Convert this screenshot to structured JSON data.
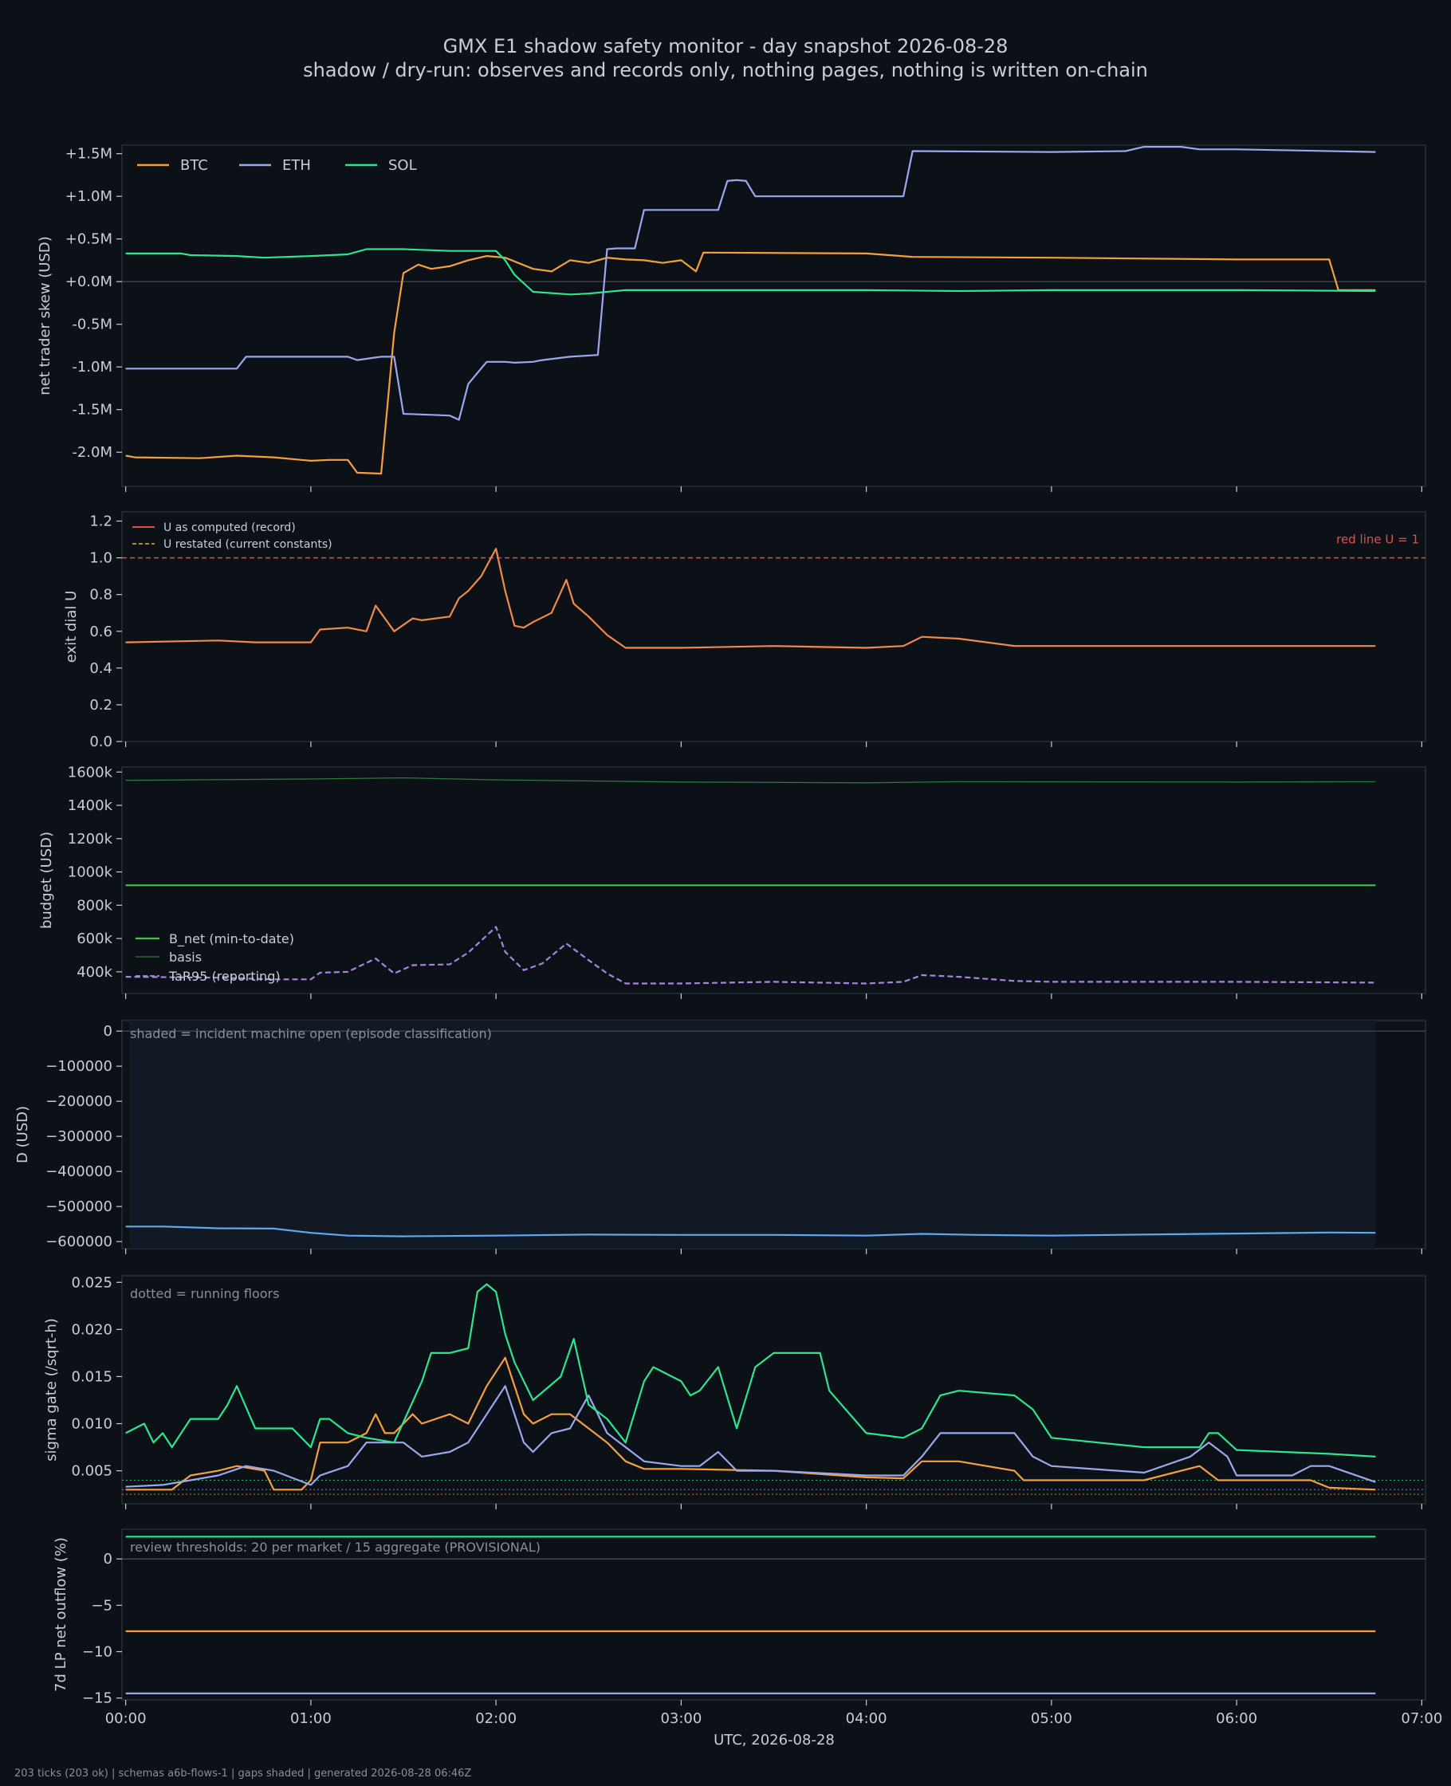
{
  "title": "GMX E1 shadow safety monitor - day snapshot 2026-08-28",
  "subtitle": "shadow / dry-run: observes and records only, nothing pages, nothing is written on-chain",
  "xlabel": "UTC, 2026-08-28",
  "footer": "203 ticks (203 ok) | schemas a6b-flows-1 | gaps shaded | generated 2026-08-28 06:46Z",
  "x_ticks": [
    "00:00",
    "01:00",
    "02:00",
    "03:00",
    "04:00",
    "05:00",
    "06:00",
    "07:00"
  ],
  "colors": {
    "background": "#0c1017",
    "btc": "#f5a03c",
    "eth": "#9aa8ee",
    "sol": "#2ee58f",
    "u": "#ef8a4a",
    "redline": "#e0504a",
    "bnet": "#3fc944",
    "basis": "#2a7a3a",
    "tar": "#a685e0",
    "d": "#5ea8f0"
  },
  "chart_data": [
    {
      "type": "line",
      "ylabel": "net trader skew (USD)",
      "x_unit": "hours",
      "xlim": [
        -0.02,
        7.02
      ],
      "ylim": [
        -2.4,
        1.6
      ],
      "yticks": [
        -2.0,
        -1.5,
        -1.0,
        -0.5,
        0.0,
        0.5,
        1.0,
        1.5
      ],
      "ytick_labels": [
        "-2.0M",
        "-1.5M",
        "-1.0M",
        "-0.5M",
        "+0.0M",
        "+0.5M",
        "+1.0M",
        "+1.5M"
      ],
      "legend": [
        "BTC",
        "ETH",
        "SOL"
      ],
      "legend_position": "top-left",
      "zero_line": true,
      "series": [
        {
          "name": "BTC",
          "color": "#f5a03c",
          "x": [
            0,
            0.05,
            0.4,
            0.6,
            0.8,
            1.0,
            1.1,
            1.2,
            1.25,
            1.38,
            1.45,
            1.5,
            1.58,
            1.65,
            1.75,
            1.85,
            1.95,
            2.05,
            2.2,
            2.3,
            2.4,
            2.5,
            2.6,
            2.7,
            2.8,
            2.9,
            3.0,
            3.08,
            3.12,
            4.0,
            4.25,
            5.0,
            6.0,
            6.5,
            6.55,
            6.75
          ],
          "y": [
            -2.04,
            -2.06,
            -2.07,
            -2.04,
            -2.06,
            -2.1,
            -2.09,
            -2.09,
            -2.24,
            -2.25,
            -0.6,
            0.1,
            0.2,
            0.15,
            0.18,
            0.25,
            0.3,
            0.28,
            0.15,
            0.12,
            0.25,
            0.22,
            0.28,
            0.26,
            0.25,
            0.22,
            0.25,
            0.12,
            0.34,
            0.33,
            0.29,
            0.28,
            0.26,
            0.26,
            -0.1,
            -0.1
          ]
        },
        {
          "name": "ETH",
          "color": "#9aa8ee",
          "x": [
            0,
            0.6,
            0.65,
            1.0,
            1.2,
            1.25,
            1.38,
            1.45,
            1.5,
            1.75,
            1.8,
            1.85,
            1.95,
            2.05,
            2.1,
            2.2,
            2.25,
            2.4,
            2.55,
            2.6,
            2.65,
            2.75,
            2.8,
            3.2,
            3.25,
            3.3,
            3.35,
            3.4,
            4.2,
            4.25,
            5.0,
            5.4,
            5.5,
            5.7,
            5.8,
            6.0,
            6.75
          ],
          "y": [
            -1.02,
            -1.02,
            -0.88,
            -0.88,
            -0.88,
            -0.92,
            -0.88,
            -0.88,
            -1.55,
            -1.57,
            -1.62,
            -1.2,
            -0.94,
            -0.94,
            -0.95,
            -0.94,
            -0.92,
            -0.88,
            -0.86,
            0.38,
            0.39,
            0.39,
            0.84,
            0.84,
            1.18,
            1.19,
            1.18,
            1.0,
            1.0,
            1.53,
            1.52,
            1.53,
            1.58,
            1.58,
            1.55,
            1.55,
            1.52
          ]
        },
        {
          "name": "SOL",
          "color": "#2ee58f",
          "x": [
            0,
            0.3,
            0.35,
            0.6,
            0.75,
            1.0,
            1.2,
            1.3,
            1.5,
            1.75,
            2.0,
            2.05,
            2.1,
            2.2,
            2.4,
            2.5,
            2.6,
            2.7,
            3.0,
            3.5,
            4.0,
            4.5,
            5.0,
            6.0,
            6.75
          ],
          "y": [
            0.33,
            0.33,
            0.31,
            0.3,
            0.28,
            0.3,
            0.32,
            0.38,
            0.38,
            0.36,
            0.36,
            0.25,
            0.08,
            -0.12,
            -0.15,
            -0.14,
            -0.12,
            -0.1,
            -0.1,
            -0.1,
            -0.1,
            -0.11,
            -0.1,
            -0.1,
            -0.11
          ]
        }
      ]
    },
    {
      "type": "line",
      "ylabel": "exit dial U",
      "x_unit": "hours",
      "xlim": [
        -0.02,
        7.02
      ],
      "ylim": [
        0,
        1.25
      ],
      "yticks": [
        0.0,
        0.2,
        0.4,
        0.6,
        0.8,
        1.0,
        1.2
      ],
      "ytick_labels": [
        "0.0",
        "0.2",
        "0.4",
        "0.6",
        "0.8",
        "1.0",
        "1.2"
      ],
      "legend": [
        "U as computed (record)",
        "U restated (current constants)"
      ],
      "legend_position": "top-left",
      "hline": {
        "y": 1.0,
        "label": "red line U = 1",
        "color": "#e0504a"
      },
      "series": [
        {
          "name": "U as computed (record)",
          "color": "#ef8a4a",
          "x": [
            0,
            0.5,
            0.7,
            1.0,
            1.05,
            1.2,
            1.3,
            1.35,
            1.45,
            1.55,
            1.6,
            1.75,
            1.8,
            1.85,
            1.92,
            2.0,
            2.05,
            2.1,
            2.15,
            2.2,
            2.3,
            2.38,
            2.42,
            2.5,
            2.6,
            2.7,
            2.8,
            3.0,
            3.5,
            4.0,
            4.2,
            4.3,
            4.5,
            4.8,
            5.0,
            6.0,
            6.75
          ],
          "y": [
            0.54,
            0.55,
            0.54,
            0.54,
            0.61,
            0.62,
            0.6,
            0.74,
            0.6,
            0.67,
            0.66,
            0.68,
            0.78,
            0.82,
            0.9,
            1.05,
            0.82,
            0.63,
            0.62,
            0.65,
            0.7,
            0.88,
            0.75,
            0.68,
            0.58,
            0.51,
            0.51,
            0.51,
            0.52,
            0.51,
            0.52,
            0.57,
            0.56,
            0.52,
            0.52,
            0.52,
            0.52
          ]
        }
      ]
    },
    {
      "type": "line",
      "ylabel": "budget (USD)",
      "x_unit": "hours",
      "xlim": [
        -0.02,
        7.02
      ],
      "ylim": [
        270000,
        1630000
      ],
      "yticks": [
        400000,
        600000,
        800000,
        1000000,
        1200000,
        1400000,
        1600000
      ],
      "ytick_labels": [
        "400k",
        "600k",
        "800k",
        "1000k",
        "1200k",
        "1400k",
        "1600k"
      ],
      "legend": [
        "B_net (min-to-date)",
        "basis",
        "TaR95 (reporting)"
      ],
      "legend_position": "bottom-left",
      "series": [
        {
          "name": "B_net (min-to-date)",
          "color": "#3fc944",
          "x": [
            0,
            6.75
          ],
          "y": [
            920000,
            920000
          ]
        },
        {
          "name": "basis",
          "color": "#2a7a3a",
          "x": [
            0,
            1.0,
            1.5,
            2.0,
            3.0,
            4.0,
            4.5,
            6.0,
            6.75
          ],
          "y": [
            1550000,
            1558000,
            1565000,
            1553000,
            1540000,
            1535000,
            1542000,
            1540000,
            1542000
          ]
        },
        {
          "name": "TaR95 (reporting)",
          "color": "#a685e0",
          "dash": true,
          "x": [
            0,
            0.5,
            0.8,
            1.0,
            1.05,
            1.2,
            1.35,
            1.45,
            1.55,
            1.75,
            1.85,
            2.0,
            2.05,
            2.15,
            2.25,
            2.38,
            2.5,
            2.6,
            2.7,
            3.0,
            3.5,
            4.0,
            4.2,
            4.3,
            4.5,
            4.8,
            5.0,
            6.0,
            6.75
          ],
          "y": [
            370000,
            365000,
            355000,
            355000,
            395000,
            400000,
            480000,
            390000,
            440000,
            445000,
            515000,
            670000,
            520000,
            410000,
            450000,
            570000,
            470000,
            390000,
            330000,
            330000,
            340000,
            330000,
            340000,
            380000,
            370000,
            345000,
            340000,
            340000,
            335000
          ]
        }
      ]
    },
    {
      "type": "line",
      "ylabel": "D (USD)",
      "x_unit": "hours",
      "xlim": [
        -0.02,
        7.02
      ],
      "ylim": [
        -620000,
        30000
      ],
      "yticks": [
        0,
        -100000,
        -200000,
        -300000,
        -400000,
        -500000,
        -600000
      ],
      "ytick_labels": [
        "0",
        "−100000",
        "−200000",
        "−300000",
        "−400000",
        "−500000",
        "−600000"
      ],
      "note": "shaded = incident machine open (episode classification)",
      "shade": [
        0.02,
        6.75
      ],
      "zero_line": true,
      "series": [
        {
          "name": "D",
          "color": "#5ea8f0",
          "x": [
            0,
            0.2,
            0.5,
            0.8,
            1.0,
            1.2,
            1.5,
            2.0,
            2.5,
            3.0,
            3.5,
            4.0,
            4.3,
            4.6,
            5.0,
            5.5,
            6.0,
            6.5,
            6.75
          ],
          "y": [
            -557000,
            -557000,
            -562000,
            -563000,
            -575000,
            -583000,
            -585000,
            -583000,
            -580000,
            -581000,
            -581000,
            -583000,
            -578000,
            -581000,
            -583000,
            -580000,
            -577000,
            -574000,
            -575000
          ]
        }
      ]
    },
    {
      "type": "line",
      "ylabel": "sigma gate (/sqrt-h)",
      "x_unit": "hours",
      "xlim": [
        -0.02,
        7.02
      ],
      "ylim": [
        0.0015,
        0.0257
      ],
      "yticks": [
        0.005,
        0.01,
        0.015,
        0.02,
        0.025
      ],
      "ytick_labels": [
        "0.005",
        "0.010",
        "0.015",
        "0.020",
        "0.025"
      ],
      "note": "dotted = running floors",
      "floors": [
        {
          "y": 0.004,
          "color": "#2ee58f"
        },
        {
          "y": 0.003,
          "color": "#9aa8ee"
        },
        {
          "y": 0.0025,
          "color": "#f5a03c"
        }
      ],
      "series": [
        {
          "name": "BTC",
          "color": "#f5a03c",
          "x": [
            0,
            0.25,
            0.35,
            0.5,
            0.6,
            0.75,
            0.8,
            0.95,
            1.0,
            1.05,
            1.2,
            1.3,
            1.35,
            1.4,
            1.45,
            1.55,
            1.6,
            1.75,
            1.85,
            1.95,
            2.05,
            2.15,
            2.2,
            2.3,
            2.4,
            2.5,
            2.6,
            2.7,
            2.8,
            3.0,
            3.5,
            4.0,
            4.2,
            4.3,
            4.5,
            4.8,
            4.85,
            5.0,
            5.5,
            5.8,
            5.9,
            6.0,
            6.4,
            6.5,
            6.75
          ],
          "y": [
            0.003,
            0.003,
            0.0045,
            0.005,
            0.0055,
            0.005,
            0.003,
            0.003,
            0.004,
            0.008,
            0.008,
            0.009,
            0.011,
            0.009,
            0.009,
            0.011,
            0.01,
            0.011,
            0.01,
            0.014,
            0.017,
            0.011,
            0.01,
            0.011,
            0.011,
            0.0095,
            0.008,
            0.006,
            0.0052,
            0.0052,
            0.005,
            0.0043,
            0.0042,
            0.006,
            0.006,
            0.005,
            0.004,
            0.004,
            0.004,
            0.0055,
            0.004,
            0.004,
            0.004,
            0.0032,
            0.003
          ]
        },
        {
          "name": "ETH",
          "color": "#9aa8ee",
          "x": [
            0,
            0.2,
            0.35,
            0.5,
            0.65,
            0.8,
            1.0,
            1.05,
            1.2,
            1.3,
            1.5,
            1.6,
            1.75,
            1.85,
            1.95,
            2.05,
            2.15,
            2.2,
            2.3,
            2.4,
            2.5,
            2.6,
            2.8,
            3.0,
            3.1,
            3.2,
            3.3,
            3.5,
            4.0,
            4.2,
            4.3,
            4.4,
            4.5,
            4.8,
            4.9,
            5.0,
            5.5,
            5.75,
            5.85,
            5.95,
            6.0,
            6.3,
            6.4,
            6.5,
            6.75
          ],
          "y": [
            0.0033,
            0.0035,
            0.004,
            0.0045,
            0.0055,
            0.005,
            0.0035,
            0.0045,
            0.0055,
            0.008,
            0.008,
            0.0065,
            0.007,
            0.008,
            0.011,
            0.014,
            0.008,
            0.007,
            0.009,
            0.0095,
            0.013,
            0.009,
            0.006,
            0.0055,
            0.0055,
            0.007,
            0.005,
            0.005,
            0.0045,
            0.0045,
            0.0065,
            0.009,
            0.009,
            0.009,
            0.0065,
            0.0055,
            0.0048,
            0.0065,
            0.008,
            0.0065,
            0.0045,
            0.0045,
            0.0055,
            0.0055,
            0.0038
          ]
        },
        {
          "name": "SOL",
          "color": "#2ee58f",
          "x": [
            0,
            0.1,
            0.15,
            0.2,
            0.25,
            0.35,
            0.5,
            0.55,
            0.6,
            0.7,
            0.8,
            0.9,
            1.0,
            1.05,
            1.1,
            1.2,
            1.3,
            1.45,
            1.6,
            1.65,
            1.75,
            1.85,
            1.9,
            1.95,
            2.0,
            2.05,
            2.1,
            2.2,
            2.35,
            2.42,
            2.5,
            2.6,
            2.7,
            2.8,
            2.85,
            3.0,
            3.05,
            3.1,
            3.2,
            3.3,
            3.4,
            3.5,
            3.6,
            3.75,
            3.8,
            4.0,
            4.2,
            4.3,
            4.4,
            4.5,
            4.8,
            4.9,
            5.0,
            5.5,
            5.8,
            5.85,
            5.9,
            6.0,
            6.5,
            6.75
          ],
          "y": [
            0.009,
            0.01,
            0.008,
            0.009,
            0.0075,
            0.0105,
            0.0105,
            0.012,
            0.014,
            0.0095,
            0.0095,
            0.0095,
            0.0075,
            0.0105,
            0.0105,
            0.009,
            0.0085,
            0.008,
            0.0145,
            0.0175,
            0.0175,
            0.018,
            0.024,
            0.0248,
            0.024,
            0.0195,
            0.0165,
            0.0125,
            0.015,
            0.019,
            0.012,
            0.0105,
            0.008,
            0.0145,
            0.016,
            0.0145,
            0.013,
            0.0135,
            0.016,
            0.0095,
            0.016,
            0.0175,
            0.0175,
            0.0175,
            0.0135,
            0.009,
            0.0085,
            0.0095,
            0.013,
            0.0135,
            0.013,
            0.0115,
            0.0085,
            0.0075,
            0.0075,
            0.009,
            0.009,
            0.0072,
            0.0068,
            0.0065
          ]
        }
      ]
    },
    {
      "type": "line",
      "ylabel": "7d LP net outflow (%)",
      "x_unit": "hours",
      "xlim": [
        -0.02,
        7.02
      ],
      "ylim": [
        -15.2,
        3.2
      ],
      "yticks": [
        0,
        -5,
        -10,
        -15
      ],
      "ytick_labels": [
        "0",
        "−5",
        "−10",
        "−15"
      ],
      "note": "review thresholds: 20 per market / 15 aggregate (PROVISIONAL)",
      "zero_line": true,
      "series": [
        {
          "name": "SOL",
          "color": "#2ee58f",
          "x": [
            0,
            6.75
          ],
          "y": [
            2.4,
            2.4
          ]
        },
        {
          "name": "BTC",
          "color": "#f5a03c",
          "x": [
            0,
            6.75
          ],
          "y": [
            -7.8,
            -7.8
          ]
        },
        {
          "name": "ETH",
          "color": "#9aa8ee",
          "x": [
            0,
            6.75
          ],
          "y": [
            -14.5,
            -14.5
          ]
        }
      ]
    }
  ]
}
